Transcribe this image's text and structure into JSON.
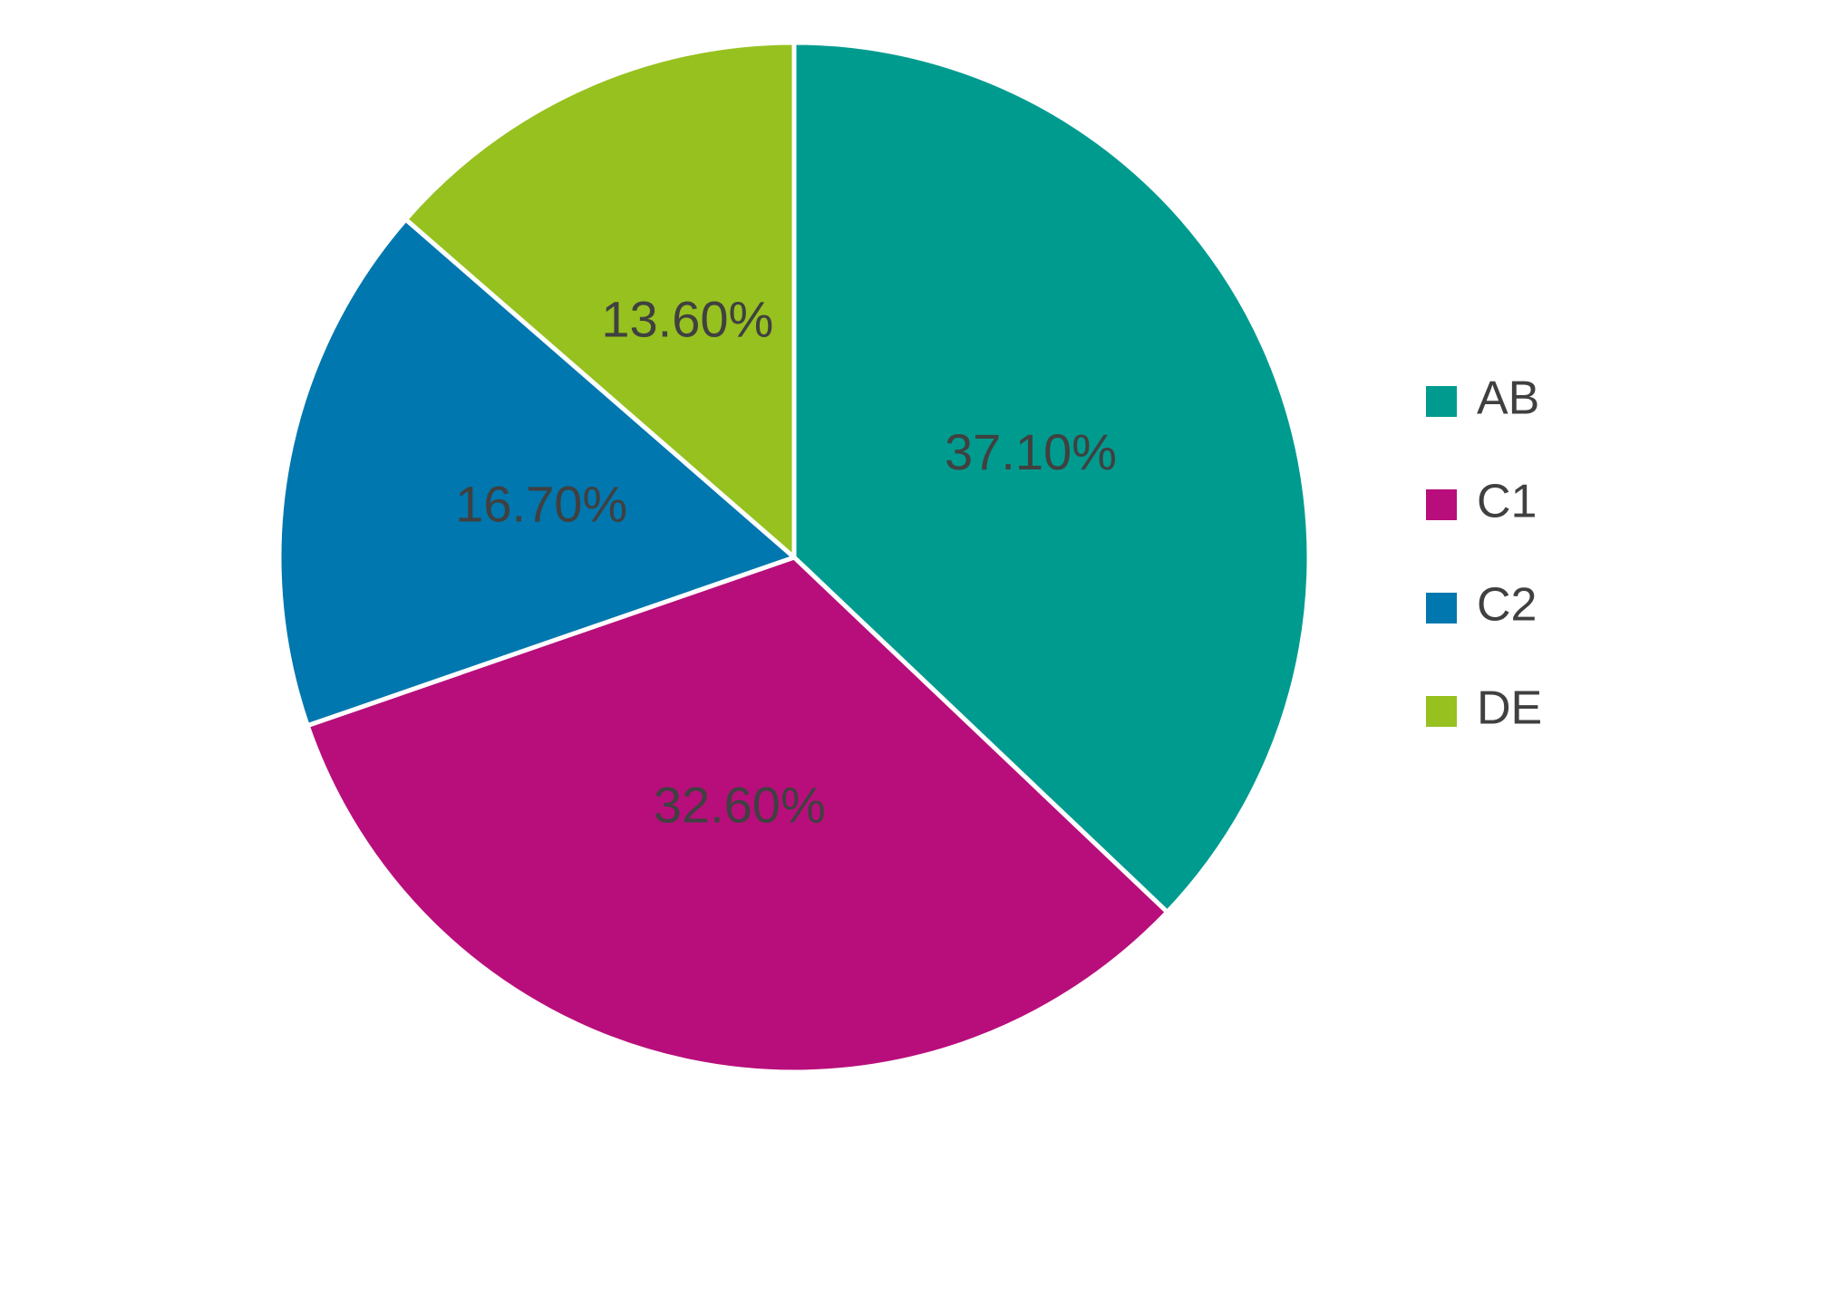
{
  "chart_data": {
    "type": "pie",
    "categories": [
      "AB",
      "C1",
      "C2",
      "DE"
    ],
    "values": [
      37.1,
      32.6,
      16.7,
      13.6
    ],
    "value_labels": [
      "37.10%",
      "32.60%",
      "16.70%",
      "13.60%"
    ],
    "colors": [
      "#009b8f",
      "#b80e7b",
      "#0077ae",
      "#96c11f"
    ],
    "legend": "right"
  }
}
